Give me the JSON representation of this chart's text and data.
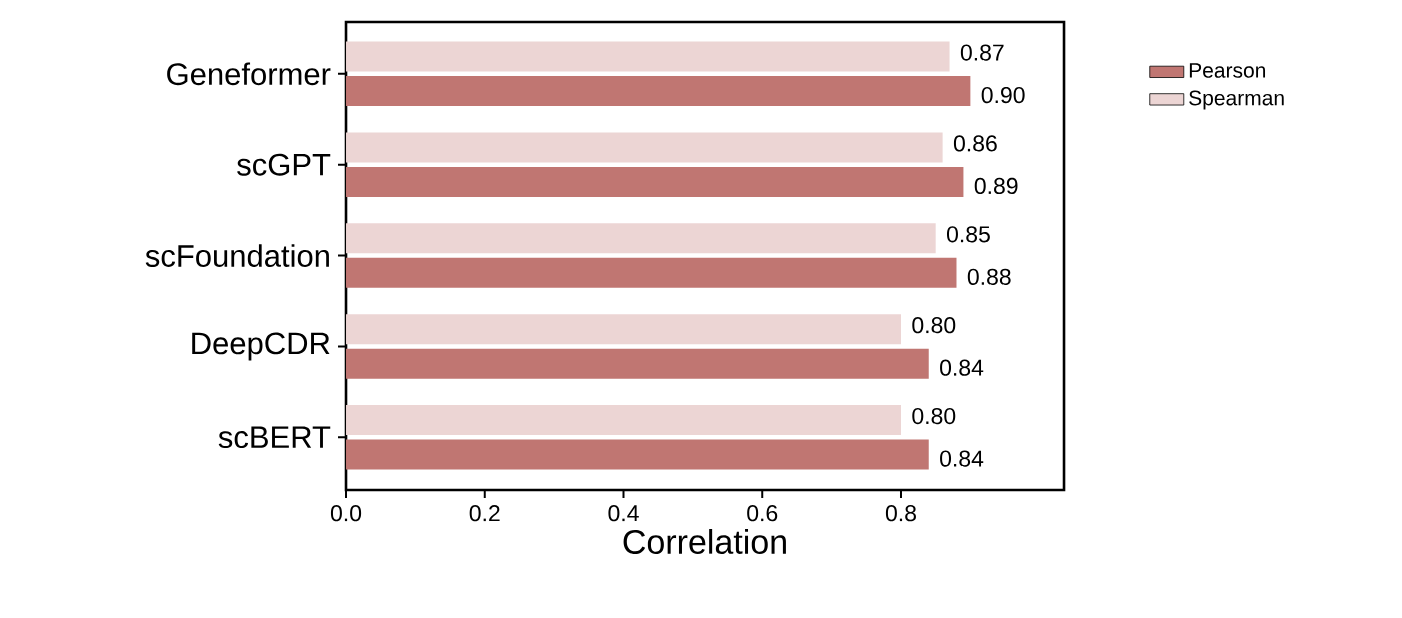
{
  "chart_data": {
    "type": "bar",
    "orientation": "horizontal",
    "xlabel": "Correlation",
    "categories": [
      "Geneformer",
      "scGPT",
      "scFoundation",
      "DeepCDR",
      "scBERT"
    ],
    "series": [
      {
        "name": "Pearson",
        "color": "#c07672",
        "values": [
          0.9,
          0.89,
          0.88,
          0.84,
          0.84
        ],
        "value_labels": [
          "0.90",
          "0.89",
          "0.88",
          "0.84",
          "0.84"
        ]
      },
      {
        "name": "Spearman",
        "color": "#ecd5d4",
        "values": [
          0.87,
          0.86,
          0.85,
          0.8,
          0.8
        ],
        "value_labels": [
          "0.87",
          "0.86",
          "0.85",
          "0.80",
          "0.80"
        ]
      }
    ],
    "xlim": [
      0,
      1.035
    ],
    "xticks": [
      {
        "value": 0,
        "label": "0.0"
      },
      {
        "value": 0.2,
        "label": "0.2"
      },
      {
        "value": 0.4,
        "label": "0.4"
      },
      {
        "value": 0.6,
        "label": "0.6"
      },
      {
        "value": 0.8,
        "label": "0.8"
      }
    ],
    "grid": false,
    "legend": "top right"
  }
}
